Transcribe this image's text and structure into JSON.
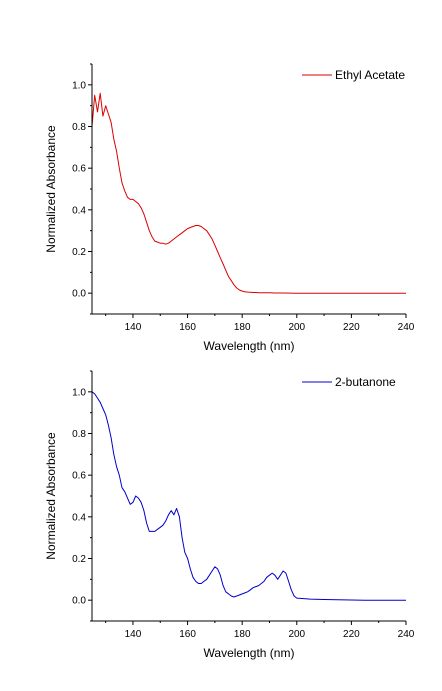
{
  "chart_data": [
    {
      "type": "line",
      "xlabel": "Wavelength (nm)",
      "ylabel": "Normalized Absorbance",
      "xlim": [
        125,
        240
      ],
      "ylim": [
        -0.1,
        1.1
      ],
      "xticks": [
        140,
        160,
        180,
        200,
        220,
        240
      ],
      "yticks": [
        0.0,
        0.2,
        0.4,
        0.6,
        0.8,
        1.0
      ],
      "ytick_labels": [
        "0.0",
        "0.2",
        "0.4",
        "0.6",
        "0.8",
        "1.0"
      ],
      "legend_position": "top-right",
      "series": [
        {
          "name": "Ethyl Acetate",
          "color": "#dd0000",
          "x": [
            125,
            126,
            127,
            128,
            129,
            130,
            131,
            132,
            133,
            134,
            135,
            136,
            137,
            138,
            139,
            140,
            141,
            142,
            143,
            144,
            145,
            146,
            147,
            148,
            149,
            150,
            151,
            152,
            153,
            154,
            155,
            156,
            157,
            158,
            159,
            160,
            161,
            162,
            163,
            164,
            165,
            166,
            167,
            168,
            169,
            170,
            171,
            172,
            173,
            174,
            175,
            176,
            177,
            178,
            179,
            180,
            181,
            182,
            183,
            184,
            185,
            186,
            188,
            190,
            192,
            195,
            200,
            205,
            210,
            215,
            220,
            225,
            230,
            235,
            240
          ],
          "y": [
            0.8,
            0.95,
            0.87,
            0.96,
            0.85,
            0.9,
            0.86,
            0.82,
            0.74,
            0.68,
            0.6,
            0.53,
            0.49,
            0.46,
            0.45,
            0.45,
            0.44,
            0.43,
            0.41,
            0.38,
            0.34,
            0.3,
            0.27,
            0.25,
            0.245,
            0.24,
            0.24,
            0.235,
            0.24,
            0.25,
            0.26,
            0.27,
            0.28,
            0.29,
            0.3,
            0.31,
            0.315,
            0.32,
            0.325,
            0.325,
            0.32,
            0.31,
            0.3,
            0.28,
            0.26,
            0.23,
            0.2,
            0.17,
            0.14,
            0.11,
            0.08,
            0.06,
            0.04,
            0.025,
            0.015,
            0.01,
            0.007,
            0.005,
            0.004,
            0.003,
            0.003,
            0.002,
            0.002,
            0.002,
            0.001,
            0.001,
            0.0,
            0.0,
            0.0,
            0.0,
            0.0,
            0.0,
            0.0,
            0.0,
            0.0
          ]
        }
      ]
    },
    {
      "type": "line",
      "xlabel": "Wavelength (nm)",
      "ylabel": "Normalized Absorbance",
      "xlim": [
        125,
        240
      ],
      "ylim": [
        -0.1,
        1.1
      ],
      "xticks": [
        140,
        160,
        180,
        200,
        220,
        240
      ],
      "yticks": [
        0.0,
        0.2,
        0.4,
        0.6,
        0.8,
        1.0
      ],
      "ytick_labels": [
        "0.0",
        "0.2",
        "0.4",
        "0.6",
        "0.8",
        "1.0"
      ],
      "legend_position": "top-right",
      "series": [
        {
          "name": "2-butanone",
          "color": "#0000cc",
          "x": [
            125,
            126,
            127,
            128,
            129,
            130,
            131,
            132,
            133,
            134,
            135,
            136,
            137,
            138,
            139,
            140,
            141,
            142,
            143,
            144,
            145,
            146,
            147,
            148,
            149,
            150,
            151,
            152,
            153,
            154,
            155,
            156,
            157,
            158,
            159,
            160,
            161,
            162,
            163,
            164,
            165,
            166,
            167,
            168,
            169,
            170,
            171,
            172,
            173,
            174,
            175,
            176,
            177,
            178,
            179,
            180,
            181,
            182,
            183,
            184,
            185,
            186,
            187,
            188,
            189,
            190,
            191,
            192,
            193,
            194,
            195,
            196,
            197,
            198,
            199,
            200,
            205,
            210,
            215,
            220,
            225,
            230,
            235,
            240
          ],
          "y": [
            1.0,
            0.99,
            0.97,
            0.95,
            0.92,
            0.89,
            0.84,
            0.78,
            0.7,
            0.64,
            0.6,
            0.54,
            0.52,
            0.49,
            0.46,
            0.47,
            0.5,
            0.49,
            0.47,
            0.43,
            0.37,
            0.33,
            0.33,
            0.33,
            0.34,
            0.35,
            0.36,
            0.38,
            0.41,
            0.43,
            0.41,
            0.44,
            0.4,
            0.3,
            0.23,
            0.2,
            0.15,
            0.11,
            0.09,
            0.08,
            0.08,
            0.09,
            0.1,
            0.12,
            0.14,
            0.16,
            0.15,
            0.12,
            0.07,
            0.04,
            0.03,
            0.02,
            0.015,
            0.02,
            0.025,
            0.03,
            0.035,
            0.04,
            0.05,
            0.06,
            0.065,
            0.07,
            0.08,
            0.09,
            0.11,
            0.12,
            0.13,
            0.12,
            0.1,
            0.12,
            0.14,
            0.13,
            0.09,
            0.05,
            0.02,
            0.01,
            0.005,
            0.003,
            0.002,
            0.001,
            0.0,
            0.0,
            0.0,
            0.0
          ]
        }
      ]
    }
  ]
}
